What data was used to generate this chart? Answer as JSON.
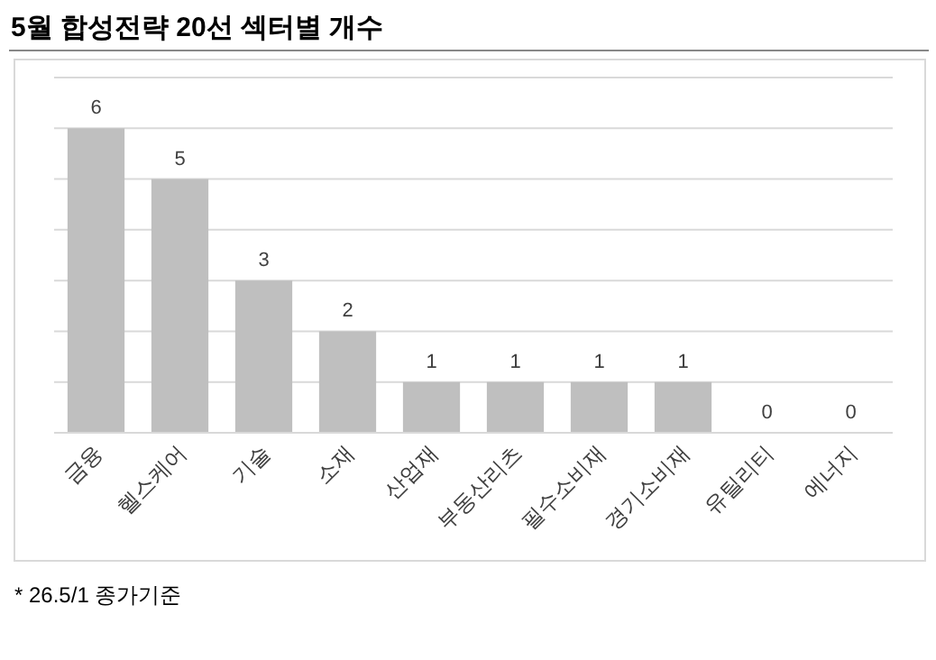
{
  "chart_data": {
    "type": "bar",
    "title": "5월 합성전략 20선 섹터별 개수",
    "categories": [
      "금융",
      "헬스케어",
      "기술",
      "소재",
      "산업재",
      "부동산리츠",
      "필수소비재",
      "경기소비재",
      "유틸리티",
      "에너지"
    ],
    "values": [
      6,
      5,
      3,
      2,
      1,
      1,
      1,
      1,
      0,
      0
    ],
    "color": "#bfbfbf",
    "ylim": [
      0,
      7
    ],
    "yticks": [
      {
        "value": 0,
        "label": null
      },
      {
        "value": 1,
        "label": null
      },
      {
        "value": 2,
        "label": null
      },
      {
        "value": 3,
        "label": null
      },
      {
        "value": 4,
        "label": null
      },
      {
        "value": 5,
        "label": null
      },
      {
        "value": 6,
        "label": null
      },
      {
        "value": 7,
        "label": null
      }
    ],
    "tick_labels": "x",
    "grid": "y",
    "data_labels": true,
    "annotations": [
      "* 26.5/1 종가기준"
    ]
  }
}
